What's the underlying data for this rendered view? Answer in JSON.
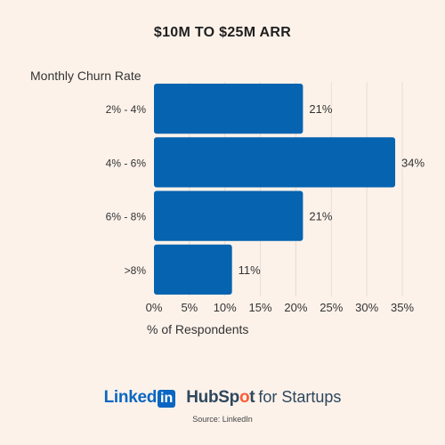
{
  "title": "$10M TO $25M ARR",
  "chart_data": {
    "type": "bar",
    "orientation": "horizontal",
    "title": "$10M TO $25M ARR",
    "ylabel": "Monthly Churn Rate",
    "xlabel": "% of Respondents",
    "categories": [
      "2% - 4%",
      "4% - 6%",
      "6% - 8%",
      ">8%"
    ],
    "values": [
      21,
      34,
      21,
      11
    ],
    "value_labels": [
      "21%",
      "34%",
      "21%",
      "11%"
    ],
    "xlim": [
      0,
      35
    ],
    "xticks": [
      0,
      5,
      10,
      15,
      20,
      25,
      30,
      35
    ],
    "xtick_labels": [
      "0%",
      "5%",
      "10%",
      "15%",
      "20%",
      "25%",
      "30%",
      "35%"
    ],
    "grid": "vertical",
    "bar_color": "#0563B0",
    "grid_color": "#E8DDD6"
  },
  "footer": {
    "linkedin_text": "Linked",
    "linkedin_box": "in",
    "hubspot_pre": "HubSp",
    "hubspot_o": "o",
    "hubspot_post": "t",
    "startups": "for Startups",
    "source": "Source: LinkedIn"
  },
  "colors": {
    "background": "#FCF2EA",
    "linkedin_blue": "#0A66C2",
    "hubspot_navy": "#2E475D",
    "hubspot_orange": "#FF5C35"
  }
}
